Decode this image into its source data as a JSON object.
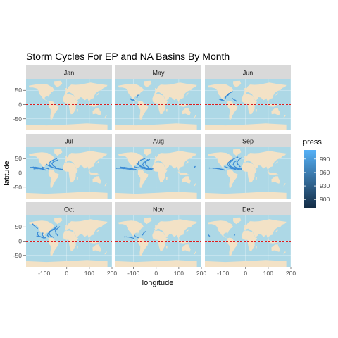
{
  "chart_data": {
    "type": "scatter",
    "title": "Storm Cycles For EP and NA Basins By Month",
    "xlabel": "longitude",
    "ylabel": "latitude",
    "xlim": [
      -180,
      200
    ],
    "ylim": [
      -90,
      90
    ],
    "x_ticks": [
      -100,
      0,
      100,
      200
    ],
    "x_tick_labels": [
      "-100",
      "0",
      "100",
      "200"
    ],
    "y_ticks": [
      50,
      0,
      -50
    ],
    "y_tick_labels": [
      "50",
      "0",
      "-50"
    ],
    "reference_line": {
      "y": 0,
      "color": "#dd1c1c",
      "style": "dashed"
    },
    "grid": true,
    "legend_position": "right",
    "legend": {
      "title": "press",
      "breaks": [
        990,
        960,
        930,
        900
      ],
      "break_labels": [
        "990",
        "960",
        "930",
        "900"
      ],
      "range": [
        880,
        1010
      ],
      "color_low": "#132b43",
      "color_high": "#56b1f7"
    },
    "colors": {
      "ocean": "#add8e6",
      "land": "#f3e2c6",
      "strip": "#d9d9d9",
      "track": "#3b8bd6"
    },
    "panels": [
      {
        "label": "Jan",
        "tracks": []
      },
      {
        "label": "May",
        "tracks": [
          [
            [
              -105,
              14
            ],
            [
              -108,
              16
            ],
            [
              -111,
              18
            ],
            [
              -113,
              20
            ]
          ],
          [
            [
              -95,
              13
            ],
            [
              -99,
              15
            ],
            [
              -102,
              17
            ]
          ],
          [
            [
              -85,
              25
            ],
            [
              -83,
              29
            ],
            [
              -80,
              33
            ]
          ]
        ]
      },
      {
        "label": "Jun",
        "tracks": [
          [
            [
              -95,
              13
            ],
            [
              -100,
              15
            ],
            [
              -105,
              17
            ],
            [
              -110,
              19
            ]
          ],
          [
            [
              -90,
              22
            ],
            [
              -88,
              26
            ],
            [
              -85,
              30
            ],
            [
              -80,
              34
            ],
            [
              -75,
              38
            ]
          ],
          [
            [
              -80,
              30
            ],
            [
              -76,
              35
            ],
            [
              -72,
              39
            ],
            [
              -65,
              43
            ],
            [
              -58,
              45
            ]
          ],
          [
            [
              -105,
              15
            ],
            [
              -110,
              17
            ],
            [
              -116,
              19
            ]
          ],
          [
            [
              -40,
              12
            ],
            [
              -46,
              15
            ],
            [
              -52,
              18
            ],
            [
              -58,
              21
            ]
          ]
        ]
      },
      {
        "label": "Jul",
        "tracks": [
          [
            [
              -100,
              12
            ],
            [
              -110,
              14
            ],
            [
              -120,
              16
            ],
            [
              -130,
              18
            ],
            [
              -140,
              20
            ],
            [
              -150,
              19
            ]
          ],
          [
            [
              -95,
              10
            ],
            [
              -105,
              12
            ],
            [
              -115,
              14
            ],
            [
              -128,
              15
            ],
            [
              -145,
              14
            ]
          ],
          [
            [
              -80,
              14
            ],
            [
              -90,
              16
            ],
            [
              -100,
              18
            ],
            [
              -108,
              20
            ]
          ],
          [
            [
              -20,
              12
            ],
            [
              -35,
              14
            ],
            [
              -50,
              16
            ],
            [
              -65,
              20
            ],
            [
              -75,
              26
            ],
            [
              -78,
              33
            ],
            [
              -72,
              40
            ],
            [
              -60,
              45
            ],
            [
              -45,
              50
            ]
          ],
          [
            [
              -30,
              13
            ],
            [
              -45,
              15
            ],
            [
              -60,
              18
            ],
            [
              -72,
              22
            ],
            [
              -82,
              26
            ],
            [
              -90,
              30
            ]
          ],
          [
            [
              -105,
              15
            ],
            [
              -118,
              17
            ],
            [
              -132,
              19
            ],
            [
              -148,
              20
            ],
            [
              -162,
              19
            ]
          ],
          [
            [
              -50,
              20
            ],
            [
              -60,
              25
            ],
            [
              -65,
              32
            ],
            [
              -60,
              38
            ],
            [
              -50,
              42
            ],
            [
              -40,
              45
            ]
          ]
        ]
      },
      {
        "label": "Aug",
        "tracks": [
          [
            [
              -100,
              10
            ],
            [
              -115,
              12
            ],
            [
              -130,
              14
            ],
            [
              -145,
              15
            ],
            [
              -160,
              16
            ],
            [
              -175,
              16
            ]
          ],
          [
            [
              -90,
              12
            ],
            [
              -105,
              14
            ],
            [
              -120,
              16
            ],
            [
              -135,
              18
            ],
            [
              -155,
              18
            ]
          ],
          [
            [
              -20,
              12
            ],
            [
              -38,
              14
            ],
            [
              -55,
              17
            ],
            [
              -70,
              22
            ],
            [
              -80,
              30
            ],
            [
              -78,
              38
            ],
            [
              -68,
              45
            ],
            [
              -50,
              50
            ]
          ],
          [
            [
              -15,
              14
            ],
            [
              -30,
              15
            ],
            [
              -48,
              17
            ],
            [
              -62,
              21
            ],
            [
              -75,
              27
            ],
            [
              -85,
              33
            ]
          ],
          [
            [
              -40,
              16
            ],
            [
              -52,
              20
            ],
            [
              -60,
              28
            ],
            [
              -55,
              36
            ],
            [
              -42,
              42
            ],
            [
              -30,
              47
            ]
          ],
          [
            [
              -25,
              11
            ],
            [
              -42,
              13
            ],
            [
              -60,
              16
            ],
            [
              -80,
              18
            ],
            [
              -95,
              21
            ]
          ],
          [
            [
              -110,
              15
            ],
            [
              -125,
              17
            ],
            [
              -140,
              19
            ],
            [
              -158,
              20
            ]
          ],
          [
            [
              -35,
              20
            ],
            [
              -45,
              28
            ],
            [
              -48,
              38
            ],
            [
              -38,
              46
            ]
          ],
          [
            [
              170,
              20
            ],
            [
              172,
              22
            ]
          ]
        ]
      },
      {
        "label": "Sep",
        "tracks": [
          [
            [
              -100,
              12
            ],
            [
              -115,
              14
            ],
            [
              -130,
              16
            ],
            [
              -145,
              17
            ],
            [
              -160,
              17
            ]
          ],
          [
            [
              -20,
              11
            ],
            [
              -38,
              13
            ],
            [
              -55,
              16
            ],
            [
              -70,
              21
            ],
            [
              -80,
              28
            ],
            [
              -76,
              36
            ],
            [
              -66,
              44
            ],
            [
              -50,
              50
            ],
            [
              -35,
              55
            ]
          ],
          [
            [
              -18,
              14
            ],
            [
              -35,
              15
            ],
            [
              -52,
              18
            ],
            [
              -66,
              23
            ],
            [
              -72,
              30
            ],
            [
              -68,
              38
            ],
            [
              -58,
              44
            ]
          ],
          [
            [
              -30,
              16
            ],
            [
              -45,
              20
            ],
            [
              -55,
              28
            ],
            [
              -52,
              36
            ],
            [
              -42,
              42
            ]
          ],
          [
            [
              -95,
              10
            ],
            [
              -110,
              13
            ],
            [
              -125,
              15
            ],
            [
              -140,
              16
            ]
          ],
          [
            [
              -45,
              12
            ],
            [
              -62,
              15
            ],
            [
              -80,
              18
            ],
            [
              -92,
              22
            ]
          ],
          [
            [
              -25,
              22
            ],
            [
              -35,
              30
            ],
            [
              -38,
              38
            ],
            [
              -30,
              46
            ],
            [
              -20,
              52
            ]
          ]
        ]
      },
      {
        "label": "Oct",
        "tracks": [
          [
            [
              -100,
              10
            ],
            [
              -110,
              13
            ],
            [
              -118,
              16
            ],
            [
              -125,
              19
            ],
            [
              -130,
              24
            ],
            [
              -128,
              30
            ]
          ],
          [
            [
              -95,
              12
            ],
            [
              -103,
              16
            ],
            [
              -108,
              22
            ],
            [
              -106,
              28
            ]
          ],
          [
            [
              -80,
              15
            ],
            [
              -85,
              20
            ],
            [
              -82,
              27
            ],
            [
              -75,
              34
            ],
            [
              -65,
              40
            ],
            [
              -52,
              46
            ],
            [
              -45,
              52
            ]
          ],
          [
            [
              -60,
              14
            ],
            [
              -70,
              18
            ],
            [
              -78,
              24
            ],
            [
              -75,
              32
            ],
            [
              -65,
              38
            ],
            [
              -50,
              44
            ]
          ],
          [
            [
              -130,
              45
            ],
            [
              -138,
              50
            ],
            [
              -145,
              55
            ],
            [
              -150,
              60
            ]
          ],
          [
            [
              -40,
              20
            ],
            [
              -48,
              28
            ],
            [
              -50,
              36
            ],
            [
              -42,
              44
            ],
            [
              -32,
              50
            ]
          ],
          [
            [
              -105,
              14
            ],
            [
              -120,
              16
            ],
            [
              -132,
              18
            ]
          ]
        ]
      },
      {
        "label": "Nov",
        "tracks": [
          [
            [
              -100,
              10
            ],
            [
              -108,
              12
            ],
            [
              -118,
              14
            ],
            [
              -130,
              15
            ],
            [
              -140,
              15
            ]
          ],
          [
            [
              -80,
              12
            ],
            [
              -90,
              15
            ],
            [
              -96,
              20
            ]
          ],
          [
            [
              -60,
              22
            ],
            [
              -55,
              28
            ],
            [
              -48,
              33
            ]
          ]
        ]
      },
      {
        "label": "Dec",
        "tracks": [
          [
            [
              -160,
              18
            ],
            [
              -163,
              20
            ],
            [
              -165,
              22
            ]
          ],
          [
            [
              -50,
              20
            ],
            [
              -48,
              24
            ]
          ]
        ]
      }
    ]
  }
}
